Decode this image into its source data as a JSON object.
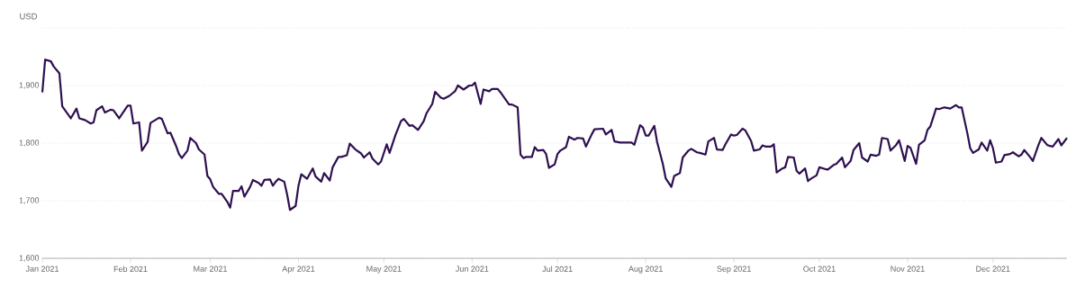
{
  "chart_data": {
    "type": "line",
    "ylabel": "USD",
    "color": "#2e1050",
    "grid": "y",
    "x": [
      "2021-01-01",
      "2021-01-02",
      "2021-01-04",
      "2021-01-05",
      "2021-01-07",
      "2021-01-08",
      "2021-01-10",
      "2021-01-11",
      "2021-01-13",
      "2021-01-14",
      "2021-01-16",
      "2021-01-18",
      "2021-01-19",
      "2021-01-20",
      "2021-01-22",
      "2021-01-23",
      "2021-01-25",
      "2021-01-26",
      "2021-01-28",
      "2021-01-31",
      "2021-02-01",
      "2021-02-02",
      "2021-02-04",
      "2021-02-05",
      "2021-02-07",
      "2021-02-08",
      "2021-02-11",
      "2021-02-12",
      "2021-02-14",
      "2021-02-15",
      "2021-02-17",
      "2021-02-18",
      "2021-02-19",
      "2021-02-21",
      "2021-02-22",
      "2021-02-24",
      "2021-02-25",
      "2021-02-27",
      "2021-02-28",
      "2021-03-01",
      "2021-03-02",
      "2021-03-04",
      "2021-03-05",
      "2021-03-07",
      "2021-03-08",
      "2021-03-09",
      "2021-03-11",
      "2021-03-12",
      "2021-03-13",
      "2021-03-15",
      "2021-03-16",
      "2021-03-18",
      "2021-03-19",
      "2021-03-20",
      "2021-03-22",
      "2021-03-23",
      "2021-03-24",
      "2021-03-25",
      "2021-03-27",
      "2021-03-28",
      "2021-03-29",
      "2021-03-31",
      "2021-04-01",
      "2021-04-02",
      "2021-04-04",
      "2021-04-06",
      "2021-04-07",
      "2021-04-09",
      "2021-04-10",
      "2021-04-12",
      "2021-04-13",
      "2021-04-15",
      "2021-04-16",
      "2021-04-18",
      "2021-04-19",
      "2021-04-21",
      "2021-04-23",
      "2021-04-24",
      "2021-04-26",
      "2021-04-27",
      "2021-04-29",
      "2021-04-30",
      "2021-05-02",
      "2021-05-03",
      "2021-05-05",
      "2021-05-07",
      "2021-05-08",
      "2021-05-10",
      "2021-05-11",
      "2021-05-13",
      "2021-05-15",
      "2021-05-16",
      "2021-05-18",
      "2021-05-19",
      "2021-05-21",
      "2021-05-22",
      "2021-05-24",
      "2021-05-26",
      "2021-05-27",
      "2021-05-29",
      "2021-05-31",
      "2021-06-01",
      "2021-06-02",
      "2021-06-04",
      "2021-06-05",
      "2021-06-07",
      "2021-06-08",
      "2021-06-10",
      "2021-06-11",
      "2021-06-12",
      "2021-06-14",
      "2021-06-15",
      "2021-06-17",
      "2021-06-18",
      "2021-06-19",
      "2021-06-20",
      "2021-06-22",
      "2021-06-23",
      "2021-06-24",
      "2021-06-26",
      "2021-06-27",
      "2021-06-28",
      "2021-06-30",
      "2021-07-01",
      "2021-07-02",
      "2021-07-04",
      "2021-07-05",
      "2021-07-07",
      "2021-07-08",
      "2021-07-10",
      "2021-07-11",
      "2021-07-13",
      "2021-07-14",
      "2021-07-17",
      "2021-07-18",
      "2021-07-20",
      "2021-07-21",
      "2021-07-23",
      "2021-07-27",
      "2021-07-28",
      "2021-07-30",
      "2021-07-31",
      "2021-08-01",
      "2021-08-02",
      "2021-08-04",
      "2021-08-05",
      "2021-08-07",
      "2021-08-08",
      "2021-08-10",
      "2021-08-11",
      "2021-08-13",
      "2021-08-14",
      "2021-08-16",
      "2021-08-17",
      "2021-08-19",
      "2021-08-20",
      "2021-08-22",
      "2021-08-23",
      "2021-08-25",
      "2021-08-26",
      "2021-08-28",
      "2021-08-29",
      "2021-08-31",
      "2021-09-01",
      "2021-09-02",
      "2021-09-04",
      "2021-09-05",
      "2021-09-07",
      "2021-09-08",
      "2021-09-10",
      "2021-09-11",
      "2021-09-12",
      "2021-09-14",
      "2021-09-15",
      "2021-09-16",
      "2021-09-18",
      "2021-09-19",
      "2021-09-20",
      "2021-09-22",
      "2021-09-23",
      "2021-09-24",
      "2021-09-26",
      "2021-09-27",
      "2021-09-28",
      "2021-09-30",
      "2021-10-01",
      "2021-10-03",
      "2021-10-04",
      "2021-10-06",
      "2021-10-07",
      "2021-10-09",
      "2021-10-10",
      "2021-10-12",
      "2021-10-13",
      "2021-10-15",
      "2021-10-16",
      "2021-10-18",
      "2021-10-19",
      "2021-10-21",
      "2021-10-22",
      "2021-10-23",
      "2021-10-25",
      "2021-10-26",
      "2021-10-28",
      "2021-10-29",
      "2021-10-31",
      "2021-11-01",
      "2021-11-02",
      "2021-11-04",
      "2021-11-05",
      "2021-11-07",
      "2021-11-08",
      "2021-11-09",
      "2021-11-11",
      "2021-11-12",
      "2021-11-14",
      "2021-11-16",
      "2021-11-18",
      "2021-11-19",
      "2021-11-20",
      "2021-11-22",
      "2021-11-23",
      "2021-11-24",
      "2021-11-26",
      "2021-11-27",
      "2021-11-29",
      "2021-11-30",
      "2021-12-01",
      "2021-12-02",
      "2021-12-04",
      "2021-12-05",
      "2021-12-07",
      "2021-12-08",
      "2021-12-10",
      "2021-12-11",
      "2021-12-12",
      "2021-12-14",
      "2021-12-15",
      "2021-12-17",
      "2021-12-18",
      "2021-12-20",
      "2021-12-21",
      "2021-12-22",
      "2021-12-24",
      "2021-12-25",
      "2021-12-27"
    ],
    "values": [
      1888,
      1945,
      1942,
      1933,
      1921,
      1864,
      1850,
      1843,
      1860,
      1843,
      1840,
      1834,
      1836,
      1857,
      1864,
      1853,
      1858,
      1857,
      1843,
      1865,
      1865,
      1834,
      1836,
      1787,
      1802,
      1835,
      1844,
      1842,
      1817,
      1818,
      1795,
      1781,
      1774,
      1787,
      1809,
      1800,
      1789,
      1780,
      1743,
      1737,
      1724,
      1712,
      1712,
      1698,
      1688,
      1717,
      1717,
      1725,
      1707,
      1724,
      1736,
      1731,
      1726,
      1736,
      1737,
      1726,
      1733,
      1738,
      1733,
      1711,
      1684,
      1691,
      1726,
      1746,
      1738,
      1756,
      1742,
      1733,
      1748,
      1735,
      1758,
      1776,
      1776,
      1779,
      1799,
      1789,
      1782,
      1775,
      1784,
      1773,
      1763,
      1768,
      1798,
      1783,
      1813,
      1838,
      1842,
      1830,
      1831,
      1823,
      1838,
      1852,
      1868,
      1889,
      1879,
      1877,
      1882,
      1890,
      1900,
      1893,
      1900,
      1900,
      1905,
      1868,
      1893,
      1890,
      1894,
      1894,
      1888,
      1881,
      1867,
      1867,
      1862,
      1780,
      1774,
      1776,
      1776,
      1793,
      1787,
      1788,
      1781,
      1757,
      1763,
      1781,
      1787,
      1793,
      1811,
      1806,
      1809,
      1808,
      1794,
      1815,
      1824,
      1825,
      1815,
      1823,
      1803,
      1801,
      1801,
      1797,
      1831,
      1827,
      1813,
      1813,
      1830,
      1802,
      1764,
      1739,
      1724,
      1743,
      1748,
      1775,
      1787,
      1790,
      1784,
      1783,
      1780,
      1803,
      1809,
      1789,
      1788,
      1798,
      1815,
      1813,
      1814,
      1825,
      1822,
      1804,
      1787,
      1789,
      1796,
      1794,
      1794,
      1798,
      1749,
      1756,
      1758,
      1776,
      1775,
      1752,
      1747,
      1756,
      1734,
      1738,
      1744,
      1758,
      1755,
      1754,
      1762,
      1764,
      1775,
      1758,
      1769,
      1788,
      1800,
      1775,
      1768,
      1780,
      1778,
      1780,
      1809,
      1807,
      1787,
      1797,
      1805,
      1769,
      1795,
      1792,
      1764,
      1797,
      1805,
      1823,
      1829,
      1860,
      1859,
      1862,
      1860,
      1866,
      1862,
      1862,
      1817,
      1791,
      1783,
      1789,
      1801,
      1787,
      1805,
      1791,
      1766,
      1768,
      1779,
      1781,
      1784,
      1777,
      1780,
      1788,
      1776,
      1769,
      1797,
      1809,
      1797,
      1795,
      1794,
      1807,
      1796,
      1809
    ],
    "xlim": [
      "2021-01-01",
      "2021-12-27"
    ],
    "xticks": [
      {
        "value": "2021-01-01",
        "label": "Jan 2021"
      },
      {
        "value": "2021-02-01",
        "label": "Feb 2021"
      },
      {
        "value": "2021-03-01",
        "label": "Mar 2021"
      },
      {
        "value": "2021-04-01",
        "label": "Apr 2021"
      },
      {
        "value": "2021-05-01",
        "label": "May 2021"
      },
      {
        "value": "2021-06-01",
        "label": "Jun 2021"
      },
      {
        "value": "2021-07-01",
        "label": "Jul 2021"
      },
      {
        "value": "2021-08-01",
        "label": "Aug 2021"
      },
      {
        "value": "2021-09-01",
        "label": "Sep 2021"
      },
      {
        "value": "2021-10-01",
        "label": "Oct 2021"
      },
      {
        "value": "2021-11-01",
        "label": "Nov 2021"
      },
      {
        "value": "2021-12-01",
        "label": "Dec 2021"
      }
    ],
    "ylim": [
      1600,
      2000
    ],
    "yticks": [
      {
        "value": 1600,
        "label": "1,600"
      },
      {
        "value": 1700,
        "label": "1,700"
      },
      {
        "value": 1800,
        "label": "1,800"
      },
      {
        "value": 1900,
        "label": "1,900"
      },
      {
        "value": 2000,
        "label": null
      }
    ]
  }
}
